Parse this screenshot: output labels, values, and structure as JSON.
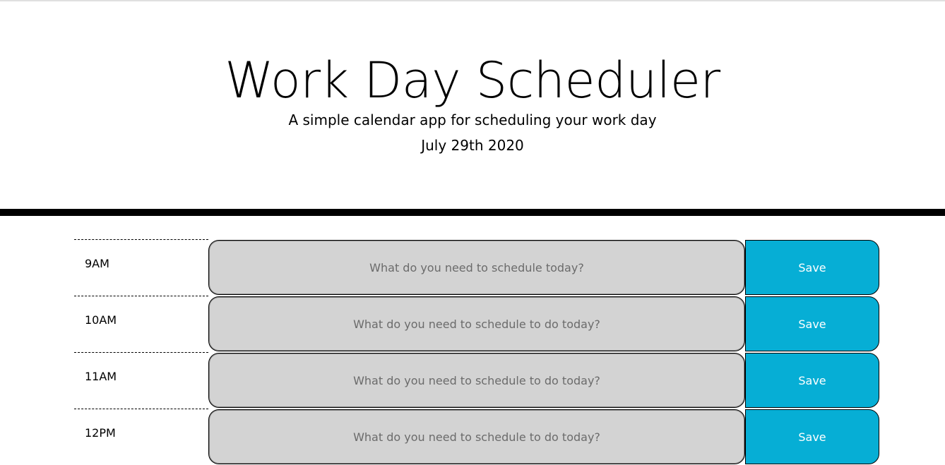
{
  "header": {
    "title": "Work Day Scheduler",
    "subtitle": "A simple calendar app for scheduling your work day",
    "current_day": "July 29th 2020"
  },
  "colors": {
    "past": "#d3d3d3",
    "save_button": "#06aed5",
    "divider": "#000000"
  },
  "timeblocks": [
    {
      "hour": "9AM",
      "placeholder": "What do you need to schedule today?",
      "value": "",
      "save_label": "Save"
    },
    {
      "hour": "10AM",
      "placeholder": "What do you need to schedule to do today?",
      "value": "",
      "save_label": "Save"
    },
    {
      "hour": "11AM",
      "placeholder": "What do you need to schedule to do today?",
      "value": "",
      "save_label": "Save"
    },
    {
      "hour": "12PM",
      "placeholder": "What do you need to schedule to do today?",
      "value": "",
      "save_label": "Save"
    }
  ]
}
